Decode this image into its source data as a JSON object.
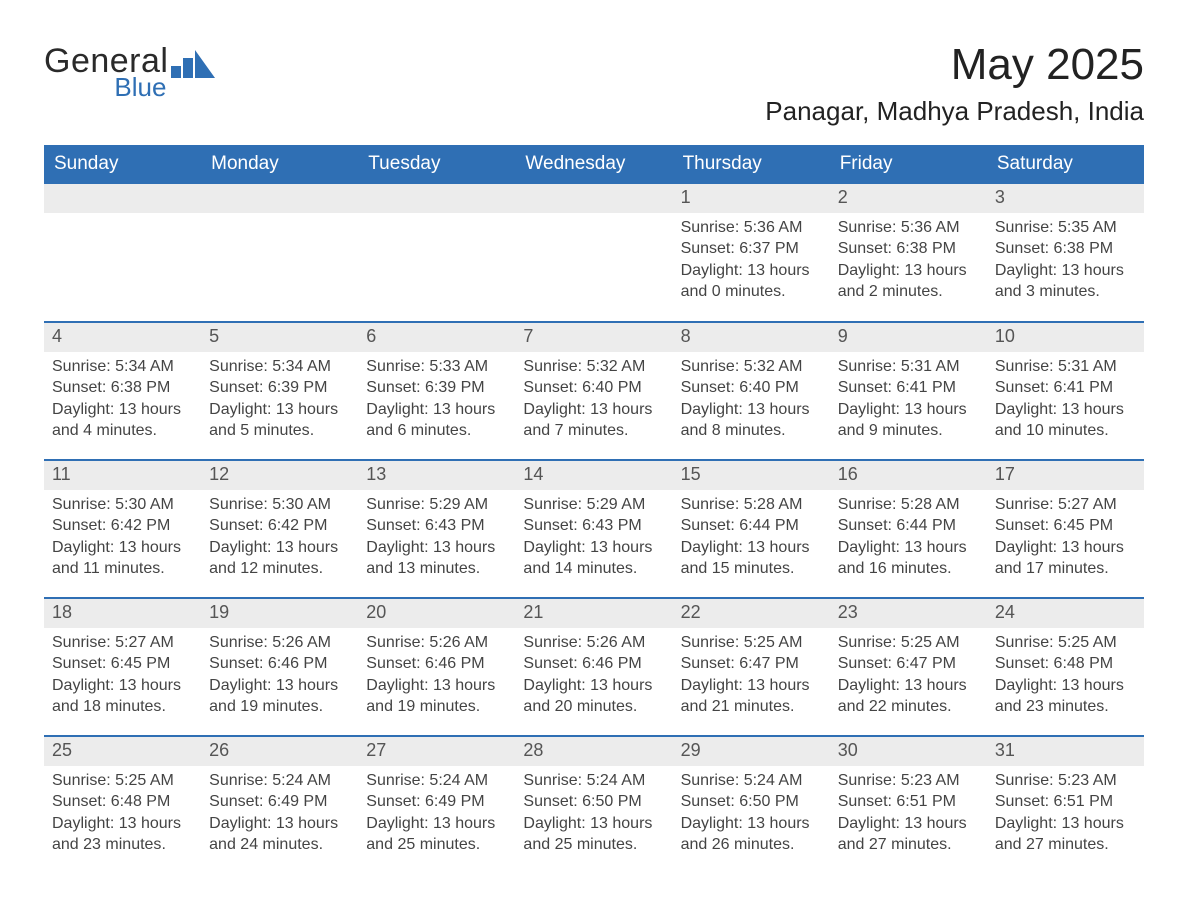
{
  "brand": {
    "word1": "General",
    "word2": "Blue",
    "logo_color": "#2f6fb4",
    "text_color_dark": "#2a2a2a"
  },
  "header": {
    "title": "May 2025",
    "location": "Panagar, Madhya Pradesh, India"
  },
  "styling": {
    "header_bg": "#2f6fb4",
    "header_text": "#ffffff",
    "row_divider": "#2f6fb4",
    "daynum_bg": "#ececec",
    "daynum_text": "#555555",
    "body_text": "#444444",
    "page_bg": "#ffffff",
    "th_fontsize": 19,
    "daynum_fontsize": 18,
    "body_fontsize": 16,
    "title_fontsize": 44,
    "location_fontsize": 26,
    "columns": 7,
    "rows": 5,
    "leading_blanks": 4
  },
  "day_headers": [
    "Sunday",
    "Monday",
    "Tuesday",
    "Wednesday",
    "Thursday",
    "Friday",
    "Saturday"
  ],
  "days": [
    {
      "n": 1,
      "sunrise": "5:36 AM",
      "sunset": "6:37 PM",
      "day_h": 13,
      "day_m": 0
    },
    {
      "n": 2,
      "sunrise": "5:36 AM",
      "sunset": "6:38 PM",
      "day_h": 13,
      "day_m": 2
    },
    {
      "n": 3,
      "sunrise": "5:35 AM",
      "sunset": "6:38 PM",
      "day_h": 13,
      "day_m": 3
    },
    {
      "n": 4,
      "sunrise": "5:34 AM",
      "sunset": "6:38 PM",
      "day_h": 13,
      "day_m": 4
    },
    {
      "n": 5,
      "sunrise": "5:34 AM",
      "sunset": "6:39 PM",
      "day_h": 13,
      "day_m": 5
    },
    {
      "n": 6,
      "sunrise": "5:33 AM",
      "sunset": "6:39 PM",
      "day_h": 13,
      "day_m": 6
    },
    {
      "n": 7,
      "sunrise": "5:32 AM",
      "sunset": "6:40 PM",
      "day_h": 13,
      "day_m": 7
    },
    {
      "n": 8,
      "sunrise": "5:32 AM",
      "sunset": "6:40 PM",
      "day_h": 13,
      "day_m": 8
    },
    {
      "n": 9,
      "sunrise": "5:31 AM",
      "sunset": "6:41 PM",
      "day_h": 13,
      "day_m": 9
    },
    {
      "n": 10,
      "sunrise": "5:31 AM",
      "sunset": "6:41 PM",
      "day_h": 13,
      "day_m": 10
    },
    {
      "n": 11,
      "sunrise": "5:30 AM",
      "sunset": "6:42 PM",
      "day_h": 13,
      "day_m": 11
    },
    {
      "n": 12,
      "sunrise": "5:30 AM",
      "sunset": "6:42 PM",
      "day_h": 13,
      "day_m": 12
    },
    {
      "n": 13,
      "sunrise": "5:29 AM",
      "sunset": "6:43 PM",
      "day_h": 13,
      "day_m": 13
    },
    {
      "n": 14,
      "sunrise": "5:29 AM",
      "sunset": "6:43 PM",
      "day_h": 13,
      "day_m": 14
    },
    {
      "n": 15,
      "sunrise": "5:28 AM",
      "sunset": "6:44 PM",
      "day_h": 13,
      "day_m": 15
    },
    {
      "n": 16,
      "sunrise": "5:28 AM",
      "sunset": "6:44 PM",
      "day_h": 13,
      "day_m": 16
    },
    {
      "n": 17,
      "sunrise": "5:27 AM",
      "sunset": "6:45 PM",
      "day_h": 13,
      "day_m": 17
    },
    {
      "n": 18,
      "sunrise": "5:27 AM",
      "sunset": "6:45 PM",
      "day_h": 13,
      "day_m": 18
    },
    {
      "n": 19,
      "sunrise": "5:26 AM",
      "sunset": "6:46 PM",
      "day_h": 13,
      "day_m": 19
    },
    {
      "n": 20,
      "sunrise": "5:26 AM",
      "sunset": "6:46 PM",
      "day_h": 13,
      "day_m": 19
    },
    {
      "n": 21,
      "sunrise": "5:26 AM",
      "sunset": "6:46 PM",
      "day_h": 13,
      "day_m": 20
    },
    {
      "n": 22,
      "sunrise": "5:25 AM",
      "sunset": "6:47 PM",
      "day_h": 13,
      "day_m": 21
    },
    {
      "n": 23,
      "sunrise": "5:25 AM",
      "sunset": "6:47 PM",
      "day_h": 13,
      "day_m": 22
    },
    {
      "n": 24,
      "sunrise": "5:25 AM",
      "sunset": "6:48 PM",
      "day_h": 13,
      "day_m": 23
    },
    {
      "n": 25,
      "sunrise": "5:25 AM",
      "sunset": "6:48 PM",
      "day_h": 13,
      "day_m": 23
    },
    {
      "n": 26,
      "sunrise": "5:24 AM",
      "sunset": "6:49 PM",
      "day_h": 13,
      "day_m": 24
    },
    {
      "n": 27,
      "sunrise": "5:24 AM",
      "sunset": "6:49 PM",
      "day_h": 13,
      "day_m": 25
    },
    {
      "n": 28,
      "sunrise": "5:24 AM",
      "sunset": "6:50 PM",
      "day_h": 13,
      "day_m": 25
    },
    {
      "n": 29,
      "sunrise": "5:24 AM",
      "sunset": "6:50 PM",
      "day_h": 13,
      "day_m": 26
    },
    {
      "n": 30,
      "sunrise": "5:23 AM",
      "sunset": "6:51 PM",
      "day_h": 13,
      "day_m": 27
    },
    {
      "n": 31,
      "sunrise": "5:23 AM",
      "sunset": "6:51 PM",
      "day_h": 13,
      "day_m": 27
    }
  ],
  "labels": {
    "sunrise": "Sunrise",
    "sunset": "Sunset",
    "daylight": "Daylight",
    "hours_word": "hours",
    "and_word": "and",
    "minutes_word": "minutes"
  }
}
